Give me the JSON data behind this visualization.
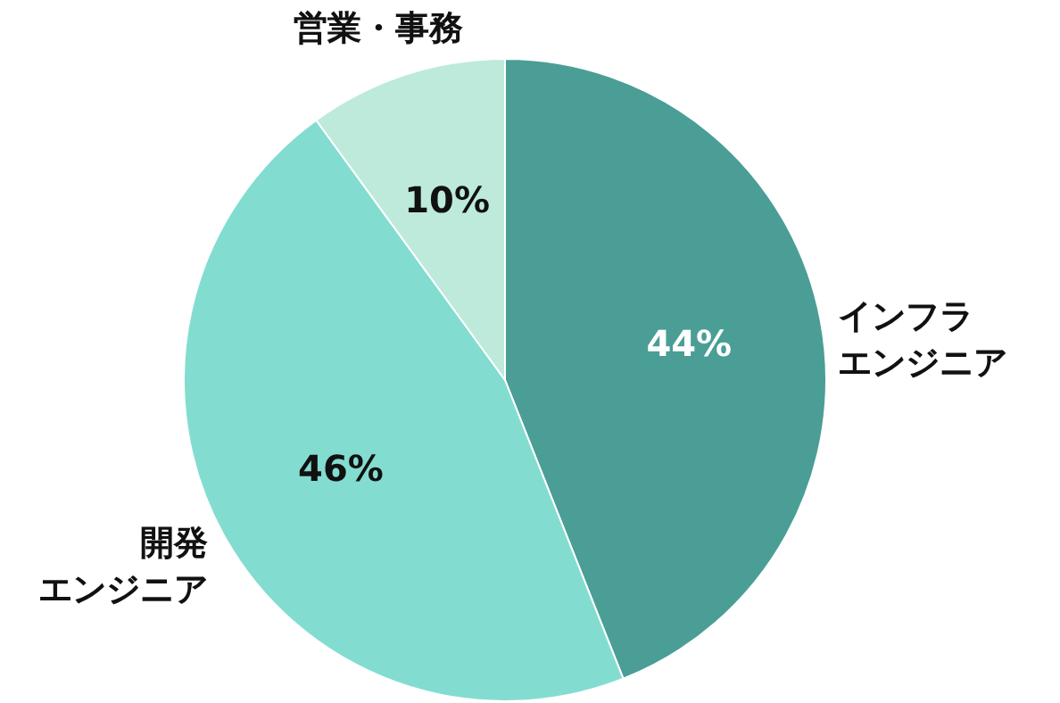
{
  "chart_data": {
    "type": "pie",
    "categories": [
      "インフラエンジニア",
      "開発エンジニア",
      "営業・事務"
    ],
    "values": [
      44,
      46,
      10
    ],
    "colors": [
      "#4a9e96",
      "#82ddd0",
      "#bdeadb"
    ],
    "value_labels": [
      "44%",
      "46%",
      "10%"
    ]
  }
}
